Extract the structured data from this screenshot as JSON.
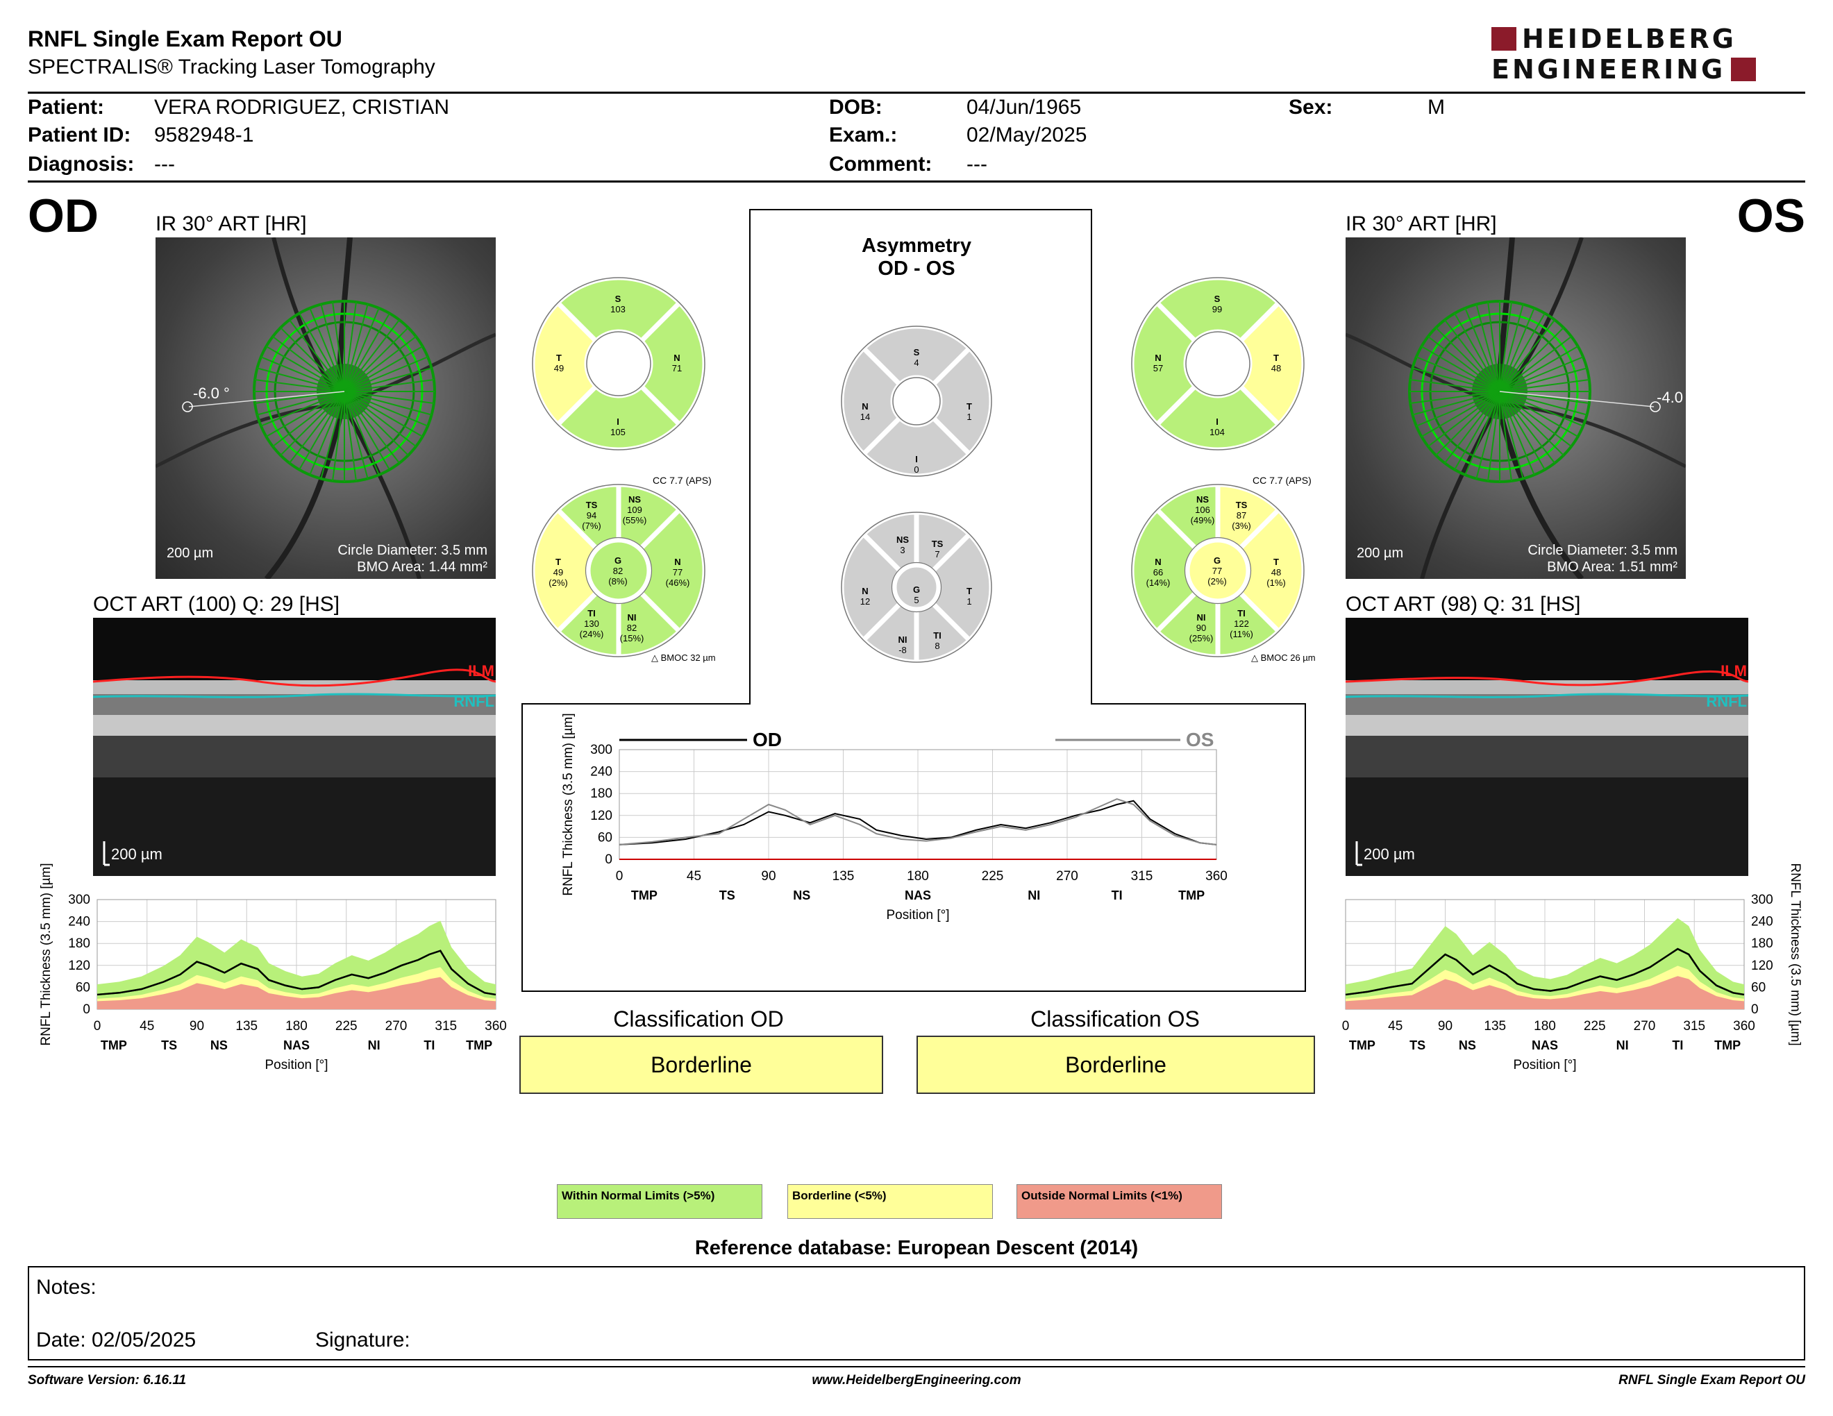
{
  "header": {
    "title": "RNFL Single Exam Report OU",
    "subtitle": "SPECTRALIS® Tracking Laser Tomography",
    "logo_line1": "HEIDELBERG",
    "logo_line2": "ENGINEERING"
  },
  "patient": {
    "patient_label": "Patient:",
    "patient_value": "VERA RODRIGUEZ, CRISTIAN",
    "id_label": "Patient ID:",
    "id_value": "9582948-1",
    "diag_label": "Diagnosis:",
    "diag_value": "---",
    "dob_label": "DOB:",
    "dob_value": "04/Jun/1965",
    "exam_label": "Exam.:",
    "exam_value": "02/May/2025",
    "comment_label": "Comment:",
    "comment_value": "---",
    "sex_label": "Sex:",
    "sex_value": "M"
  },
  "od": {
    "eye_label": "OD",
    "ir_caption": "IR 30° ART [HR]",
    "angle": "-6.0 °",
    "scale": "200 µm",
    "circle_diameter": "Circle Diameter: 3.5 mm",
    "bmo_area": "BMO Area: 1.44 mm²",
    "oct_caption": "OCT ART (100) Q: 29 [HS]",
    "oct_scale": "200 µm",
    "ilm": "ILM",
    "rnfl": "RNFL",
    "quad": {
      "S": "103",
      "T": "49",
      "N": "71",
      "I": "105"
    },
    "cc": "CC 7.7 (APS)",
    "sectors": {
      "TS": [
        "94",
        "(7%)"
      ],
      "NS": [
        "109",
        "(55%)"
      ],
      "T": [
        "49",
        "(2%)"
      ],
      "G": [
        "82",
        "(8%)"
      ],
      "N": [
        "77",
        "(46%)"
      ],
      "TI": [
        "130",
        "(24%)"
      ],
      "NI": [
        "82",
        "(15%)"
      ]
    },
    "bmoc": "BMOC 32 µm",
    "classification_title": "Classification OD",
    "classification": "Borderline"
  },
  "os": {
    "eye_label": "OS",
    "ir_caption": "IR 30° ART [HR]",
    "angle": "-4.0",
    "scale": "200 µm",
    "circle_diameter": "Circle Diameter: 3.5 mm",
    "bmo_area": "BMO Area: 1.51 mm²",
    "oct_caption": "OCT ART (98) Q: 31 [HS]",
    "oct_scale": "200 µm",
    "ilm": "ILM",
    "rnfl": "RNFL",
    "quad": {
      "S": "99",
      "N": "57",
      "T": "48",
      "I": "104"
    },
    "cc": "CC 7.7 (APS)",
    "sectors": {
      "NS": [
        "106",
        "(49%)"
      ],
      "TS": [
        "87",
        "(3%)"
      ],
      "N": [
        "66",
        "(14%)"
      ],
      "G": [
        "77",
        "(2%)"
      ],
      "T": [
        "48",
        "(1%)"
      ],
      "NI": [
        "90",
        "(25%)"
      ],
      "TI": [
        "122",
        "(11%)"
      ]
    },
    "bmoc": "BMOC 26 µm",
    "classification_title": "Classification OS",
    "classification": "Borderline"
  },
  "asymmetry": {
    "title_line1": "Asymmetry",
    "title_line2": "OD - OS",
    "quad": {
      "S": "4",
      "N": "14",
      "T": "1",
      "I": "0"
    },
    "sectors": {
      "NS": "3",
      "TS": "7",
      "N": "12",
      "G": "5",
      "T": "1",
      "NI": "-8",
      "TI": "8"
    }
  },
  "chart_data": [
    {
      "type": "line",
      "title": "",
      "legend": [
        "OD",
        "OS"
      ],
      "xlabel": "Position [°]",
      "ylabel": "RNFL Thickness (3.5 mm) [µm]",
      "xlim": [
        0,
        360
      ],
      "ylim": [
        0,
        300
      ],
      "xticks": [
        "0",
        "45",
        "90",
        "135",
        "180",
        "225",
        "270",
        "315",
        "360"
      ],
      "yticks": [
        "0",
        "60",
        "120",
        "180",
        "240",
        "300"
      ],
      "sector_labels": [
        "TMP",
        "TS",
        "NS",
        "NAS",
        "NI",
        "TI",
        "TMP"
      ],
      "x": [
        0,
        20,
        40,
        60,
        75,
        90,
        100,
        115,
        130,
        145,
        155,
        170,
        185,
        200,
        215,
        230,
        245,
        260,
        275,
        290,
        300,
        310,
        320,
        335,
        350,
        360
      ],
      "series": [
        {
          "name": "OD",
          "color": "#000000",
          "values": [
            40,
            45,
            55,
            75,
            95,
            130,
            120,
            100,
            125,
            110,
            80,
            65,
            55,
            60,
            80,
            95,
            85,
            100,
            120,
            135,
            150,
            160,
            110,
            70,
            45,
            40
          ]
        },
        {
          "name": "OS",
          "color": "#888888",
          "values": [
            40,
            48,
            60,
            70,
            110,
            150,
            135,
            95,
            120,
            95,
            70,
            55,
            50,
            58,
            75,
            90,
            80,
            95,
            115,
            145,
            165,
            150,
            105,
            65,
            45,
            40
          ]
        }
      ]
    },
    {
      "type": "line",
      "title": "",
      "xlabel": "Position [°]",
      "ylabel": "RNFL Thickness (3.5 mm) [µm]",
      "xlim": [
        0,
        360
      ],
      "ylim": [
        0,
        300
      ],
      "xticks": [
        "0",
        "45",
        "90",
        "135",
        "180",
        "225",
        "270",
        "315",
        "360"
      ],
      "yticks": [
        "0",
        "60",
        "120",
        "180",
        "240",
        "300"
      ],
      "sector_labels": [
        "TMP",
        "TS",
        "NS",
        "NAS",
        "NI",
        "TI",
        "TMP"
      ],
      "x": [
        0,
        20,
        40,
        60,
        75,
        90,
        100,
        115,
        130,
        145,
        155,
        170,
        185,
        200,
        215,
        230,
        245,
        260,
        275,
        290,
        300,
        310,
        320,
        335,
        350,
        360
      ],
      "series": [
        {
          "name": "OD",
          "color": "#000000",
          "values": [
            40,
            45,
            55,
            75,
            95,
            130,
            120,
            100,
            125,
            110,
            80,
            65,
            55,
            60,
            80,
            95,
            85,
            100,
            120,
            135,
            150,
            160,
            110,
            70,
            45,
            40
          ]
        }
      ]
    },
    {
      "type": "line",
      "title": "",
      "xlabel": "Position [°]",
      "ylabel": "RNFL Thickness (3.5 mm) [µm]",
      "xlim": [
        0,
        360
      ],
      "ylim": [
        0,
        300
      ],
      "xticks": [
        "0",
        "45",
        "90",
        "135",
        "180",
        "225",
        "270",
        "315",
        "360"
      ],
      "yticks": [
        "0",
        "60",
        "120",
        "180",
        "240",
        "300"
      ],
      "sector_labels": [
        "TMP",
        "TS",
        "NS",
        "NAS",
        "NI",
        "TI",
        "TMP"
      ],
      "x": [
        0,
        20,
        40,
        60,
        75,
        90,
        100,
        115,
        130,
        145,
        155,
        170,
        185,
        200,
        215,
        230,
        245,
        260,
        275,
        290,
        300,
        310,
        320,
        335,
        350,
        360
      ],
      "series": [
        {
          "name": "OS",
          "color": "#000000",
          "values": [
            40,
            48,
            60,
            70,
            110,
            150,
            135,
            95,
            120,
            95,
            70,
            55,
            50,
            58,
            75,
            90,
            80,
            95,
            115,
            145,
            165,
            150,
            105,
            65,
            45,
            40
          ]
        }
      ]
    }
  ],
  "legend": {
    "normal": "Within Normal Limits (>5%)",
    "borderline": "Borderline (<5%)",
    "outside": "Outside Normal Limits (<1%)",
    "normal_color": "#b8f07a",
    "borderline_color": "#ffff99",
    "outside_color": "#f09a8a"
  },
  "reference": "Reference database: European Descent (2014)",
  "notes": {
    "notes_label": "Notes:",
    "date_label": "Date: 02/05/2025",
    "signature_label": "Signature:"
  },
  "footer": {
    "version": "Software Version: 6.16.11",
    "website": "www.HeidelbergEngineering.com",
    "report": "RNFL Single Exam Report OU"
  }
}
